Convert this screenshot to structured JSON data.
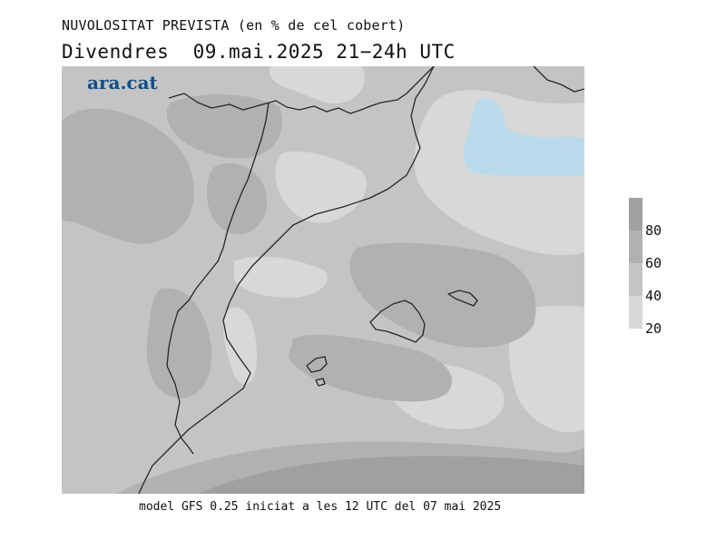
{
  "title": "NUVOLOSITAT PREVISTA (en % de cel cobert)",
  "subtitle": {
    "day": "Divendres",
    "date": "09.mai.2025",
    "time_range": "21−24h UTC"
  },
  "logo_text": "ara.cat",
  "footer": "model GFS 0.25 iniciat a les 12 UTC del 07 mai 2025",
  "legend": {
    "labels": [
      "80",
      "60",
      "40",
      "20"
    ],
    "colors": [
      "#a0a0a0",
      "#b1b1b1",
      "#c4c4c4",
      "#d8d8d8"
    ]
  },
  "map": {
    "colors": {
      "very_high": "#a0a0a0",
      "high": "#b1b1b1",
      "medium": "#c4c4c4",
      "low": "#d8d8d8",
      "clear": "#b9dbeb",
      "outline": "#262626"
    }
  }
}
